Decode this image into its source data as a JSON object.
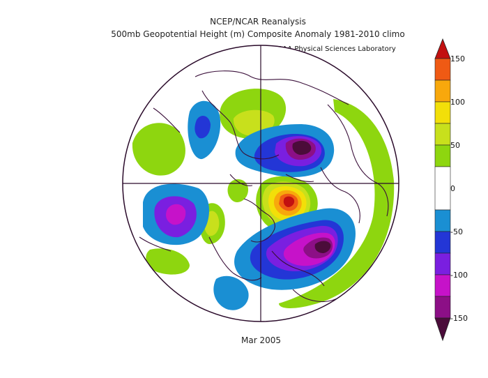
{
  "header": {
    "title_line1": "NCEP/NCAR Reanalysis",
    "title_line2": "500mb Geopotential Height (m) Composite Anomaly 1981-2010 climo",
    "credit": "NOAA Physical Sciences Laboratory"
  },
  "footer": {
    "date_label": "Mar 2005"
  },
  "map": {
    "projection": "north-polar-stereographic",
    "variable": "500mb geopotential height anomaly",
    "units": "m"
  },
  "colorbar": {
    "tick_labels": [
      "150",
      "100",
      "50",
      "0",
      "-50",
      "-100",
      "-150"
    ],
    "levels": [
      -150,
      -125,
      -100,
      -75,
      -50,
      -25,
      25,
      50,
      75,
      100,
      125,
      150
    ],
    "colors": {
      "lt_-150": "#4b0c3a",
      "-150_-125": "#8c0f86",
      "-125_-100": "#c612c9",
      "-100_-75": "#7a1fe0",
      "-75_-50": "#2336d6",
      "-50_-25": "#1a8fd3",
      "-25_25": "#ffffff",
      "25_50": "#8ed60f",
      "50_75": "#c8e01c",
      "75_100": "#f2df09",
      "100_125": "#f8a80c",
      "125_150": "#ef5a14",
      "gt_150": "#c21010"
    }
  }
}
